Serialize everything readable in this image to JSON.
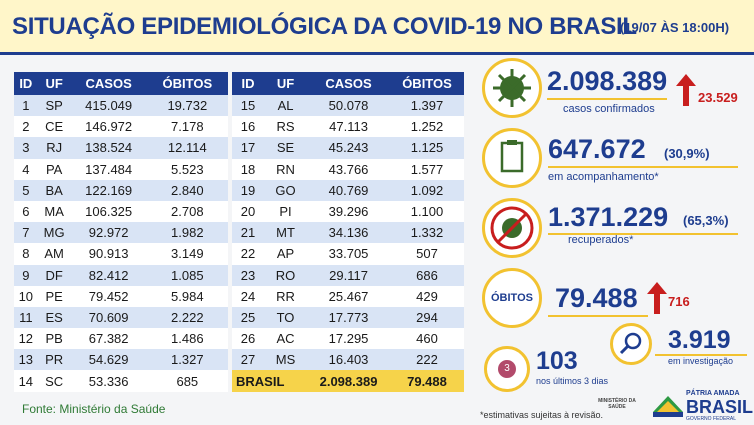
{
  "header": {
    "title": "SITUAÇÃO EPIDEMIOLÓGICA DA COVID-19 NO BRASIL",
    "date": "(19/07 ÀS 18:00H)"
  },
  "left_table": {
    "columns": [
      "ID",
      "UF",
      "CASOS",
      "ÓBITOS"
    ],
    "rows": [
      [
        "1",
        "SP",
        "415.049",
        "19.732"
      ],
      [
        "2",
        "CE",
        "146.972",
        "7.178"
      ],
      [
        "3",
        "RJ",
        "138.524",
        "12.114"
      ],
      [
        "4",
        "PA",
        "137.484",
        "5.523"
      ],
      [
        "5",
        "BA",
        "122.169",
        "2.840"
      ],
      [
        "6",
        "MA",
        "106.325",
        "2.708"
      ],
      [
        "7",
        "MG",
        "92.972",
        "1.982"
      ],
      [
        "8",
        "AM",
        "90.913",
        "3.149"
      ],
      [
        "9",
        "DF",
        "82.412",
        "1.085"
      ],
      [
        "10",
        "PE",
        "79.452",
        "5.984"
      ],
      [
        "11",
        "ES",
        "70.609",
        "2.222"
      ],
      [
        "12",
        "PB",
        "67.382",
        "1.486"
      ],
      [
        "13",
        "PR",
        "54.629",
        "1.327"
      ],
      [
        "14",
        "SC",
        "53.336",
        "685"
      ]
    ]
  },
  "right_table": {
    "columns": [
      "ID",
      "UF",
      "CASOS",
      "ÓBITOS"
    ],
    "rows": [
      [
        "15",
        "AL",
        "50.078",
        "1.397"
      ],
      [
        "16",
        "RS",
        "47.113",
        "1.252"
      ],
      [
        "17",
        "SE",
        "45.243",
        "1.125"
      ],
      [
        "18",
        "RN",
        "43.766",
        "1.577"
      ],
      [
        "19",
        "GO",
        "40.769",
        "1.092"
      ],
      [
        "20",
        "PI",
        "39.296",
        "1.100"
      ],
      [
        "21",
        "MT",
        "34.136",
        "1.332"
      ],
      [
        "22",
        "AP",
        "33.705",
        "507"
      ],
      [
        "23",
        "RO",
        "29.117",
        "686"
      ],
      [
        "24",
        "RR",
        "25.467",
        "429"
      ],
      [
        "25",
        "TO",
        "17.773",
        "294"
      ],
      [
        "26",
        "AC",
        "17.295",
        "460"
      ],
      [
        "27",
        "MS",
        "16.403",
        "222"
      ]
    ],
    "total": [
      "BRASIL",
      "2.098.389",
      "79.488"
    ]
  },
  "summary": {
    "confirmed": {
      "value": "2.098.389",
      "label": "casos confirmados",
      "increase": "23.529"
    },
    "monitoring": {
      "value": "647.672",
      "percent": "(30,9%)",
      "label": "em acompanhamento*"
    },
    "recovered": {
      "value": "1.371.229",
      "percent": "(65,3%)",
      "label": "recuperados*"
    },
    "deaths": {
      "badge": "ÓBITOS",
      "value": "79.488",
      "increase": "716"
    },
    "recent": {
      "value": "103",
      "label": "nos últimos 3 dias",
      "calendar_day": "3"
    },
    "investigation": {
      "value": "3.919",
      "label": "em investigação"
    },
    "note": "*estimativas sujeitas à revisão."
  },
  "footer": {
    "source": "Fonte: Ministério da Saúde",
    "ministry": "MINISTÉRIO DA SAÚDE",
    "slogan": "PÁTRIA AMADA",
    "brand": "BRASIL",
    "government": "GOVERNO FEDERAL"
  }
}
